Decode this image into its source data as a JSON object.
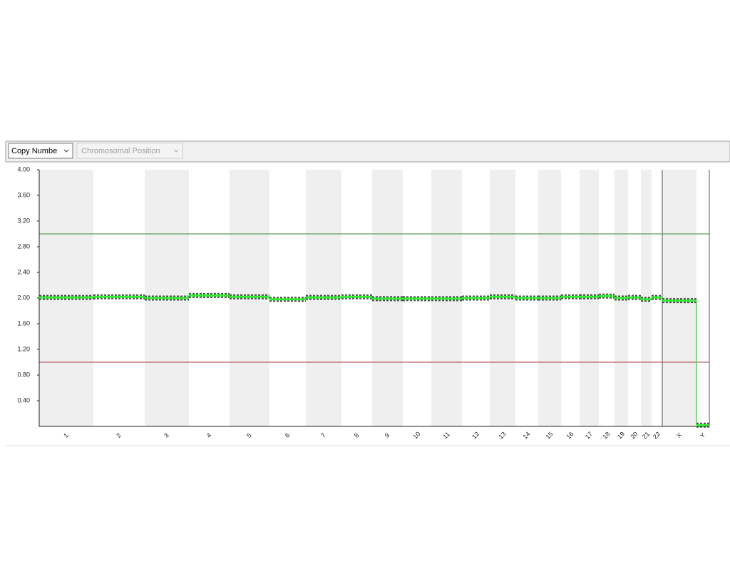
{
  "toolbar": {
    "dropdowns": [
      "Copy Numbe",
      "Chromosomal Position"
    ]
  },
  "chart_data": {
    "type": "line",
    "categories": [
      "1",
      "2",
      "3",
      "4",
      "5",
      "6",
      "7",
      "8",
      "9",
      "10",
      "11",
      "12",
      "13",
      "14",
      "15",
      "16",
      "17",
      "18",
      "19",
      "20",
      "21",
      "22",
      "X",
      "Y"
    ],
    "series": [
      {
        "color": "#33ee33",
        "values": [
          2.01,
          2.02,
          2.0,
          2.04,
          2.02,
          1.98,
          2.01,
          2.02,
          1.99,
          1.99,
          1.99,
          2.0,
          2.02,
          2.0,
          2.0,
          2.02,
          2.02,
          2.03,
          2.0,
          2.01,
          1.98,
          2.01,
          1.96,
          0.02
        ]
      }
    ],
    "reference_lines": [
      {
        "value": 3,
        "color": "#5a9e5a"
      },
      {
        "value": 1,
        "color": "#b06060"
      }
    ],
    "ylim": [
      0,
      4
    ],
    "yticks": [
      {
        "value": 0.4,
        "label": "0.40"
      },
      {
        "value": 0.8,
        "label": "0.80"
      },
      {
        "value": 1.2,
        "label": "1.20"
      },
      {
        "value": 1.6,
        "label": "1.60"
      },
      {
        "value": 2,
        "label": "2.00"
      },
      {
        "value": 2.4,
        "label": "2.40"
      },
      {
        "value": 2.8,
        "label": "2.80"
      },
      {
        "value": 3.2,
        "label": "3.20"
      },
      {
        "value": 3.6,
        "label": "3.60"
      },
      {
        "value": 4,
        "label": "4.00"
      }
    ]
  }
}
